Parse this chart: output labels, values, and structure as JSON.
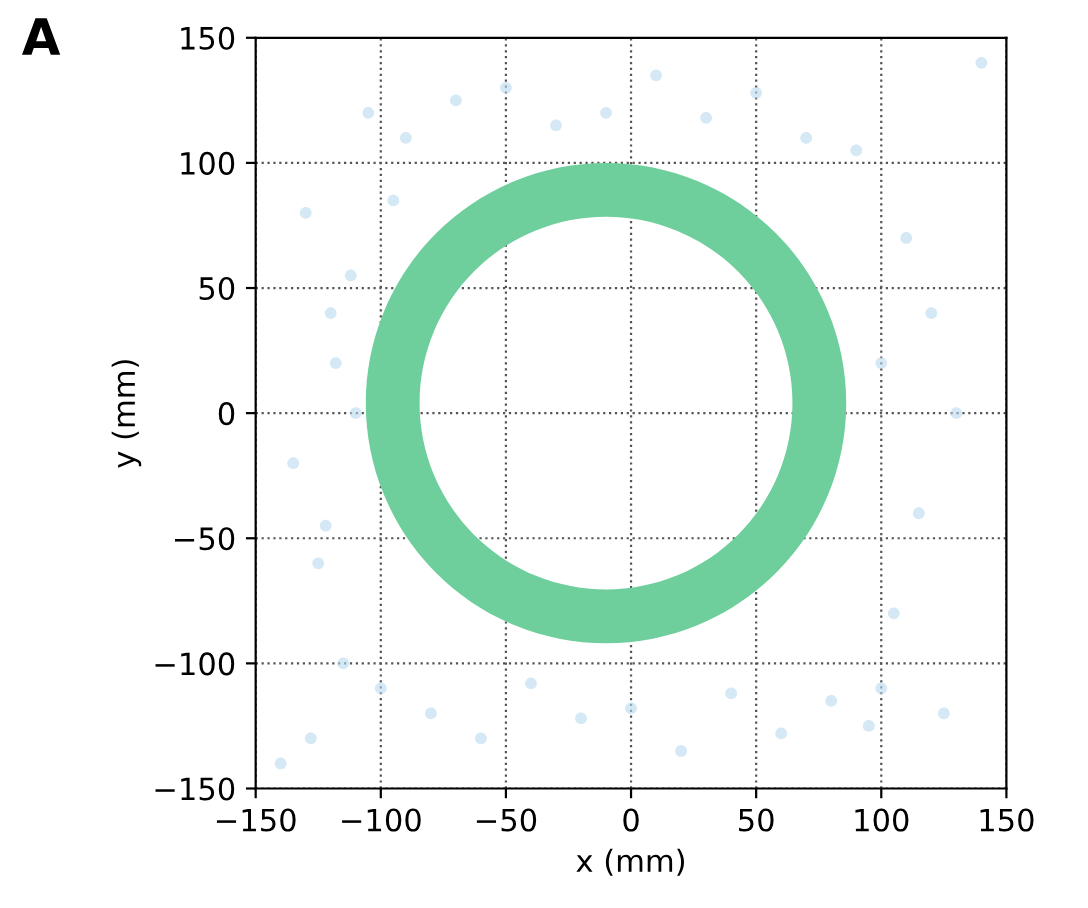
{
  "chart_data": {
    "type": "scatter",
    "xlabel": "x (mm)",
    "ylabel": "y (mm)",
    "annotations": [
      "A"
    ],
    "xlim": [
      -150,
      150
    ],
    "ylim": [
      -150,
      150
    ],
    "xticks": [
      {
        "value": -150,
        "label": "−150"
      },
      {
        "value": -100,
        "label": "−100"
      },
      {
        "value": -50,
        "label": "−50"
      },
      0,
      50,
      100,
      150
    ],
    "yticks": [
      {
        "value": -150,
        "label": "−150"
      },
      {
        "value": -100,
        "label": "−100"
      },
      {
        "value": -50,
        "label": "−50"
      },
      0,
      50,
      100,
      150
    ],
    "grid": true,
    "legend": false,
    "series": [
      {
        "marker": "circle",
        "color": "#b9d9ee",
        "x": [
          -130,
          -120,
          -110,
          -135,
          -125,
          -115,
          -105,
          -128,
          -118,
          -100,
          -90,
          -70,
          -50,
          -30,
          -10,
          10,
          30,
          50,
          70,
          90,
          100,
          110,
          120,
          130,
          115,
          105,
          125,
          95,
          80,
          60,
          40,
          20,
          0,
          -20,
          -40,
          -60,
          -80,
          -95,
          -112,
          -122,
          -140,
          140,
          100
        ],
        "values": [
          80,
          40,
          0,
          -20,
          -60,
          -100,
          120,
          -130,
          20,
          -110,
          110,
          125,
          130,
          115,
          120,
          135,
          118,
          128,
          110,
          105,
          -110,
          70,
          40,
          0,
          -40,
          -80,
          -120,
          -125,
          -115,
          -128,
          -112,
          -135,
          -118,
          -122,
          -108,
          -130,
          -120,
          85,
          55,
          -45,
          -140,
          140,
          20
        ]
      }
    ]
  }
}
